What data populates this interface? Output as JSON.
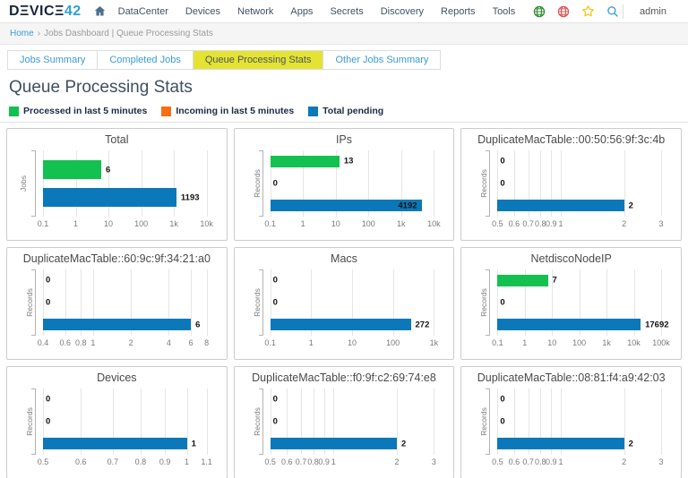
{
  "navbar": {
    "logo": {
      "dark": "DΞVICΞ",
      "accent": "42"
    },
    "items": [
      "DataCenter",
      "Devices",
      "Network",
      "Apps",
      "Secrets",
      "Discovery",
      "Reports",
      "Tools"
    ],
    "user": "admin"
  },
  "breadcrumb": {
    "home": "Home",
    "separator": "›",
    "path": "Jobs Dashboard | Queue Processing Stats"
  },
  "tabs": [
    {
      "label": "Jobs Summary",
      "active": false
    },
    {
      "label": "Completed Jobs",
      "active": false
    },
    {
      "label": "Queue Processing Stats",
      "active": true
    },
    {
      "label": "Other Jobs Summary",
      "active": false
    }
  ],
  "page_title": "Queue Processing Stats",
  "colors": {
    "processed": "#12c150",
    "incoming": "#f96d15",
    "pending": "#0a78b9",
    "tab_highlight": "#e5e332",
    "link": "#3a9bd8"
  },
  "legend": [
    {
      "label": "Processed in last 5 minutes",
      "color": "#12c150"
    },
    {
      "label": "Incoming in last 5 minutes",
      "color": "#f96d15"
    },
    {
      "label": "Total pending",
      "color": "#0a78b9"
    }
  ],
  "chart_data": [
    {
      "type": "bar",
      "title": "Total",
      "ylabel": "Jobs",
      "xscale": "log",
      "xmin": 0.1,
      "xmax": 10000,
      "ticks": [
        {
          "v": 0.1,
          "l": "0.1"
        },
        {
          "v": 1,
          "l": "1"
        },
        {
          "v": 10,
          "l": "10"
        },
        {
          "v": 100,
          "l": "100"
        },
        {
          "v": 1000,
          "l": "1k"
        },
        {
          "v": 10000,
          "l": "10k"
        }
      ],
      "bars": [
        {
          "name": "processed",
          "color": "#12c150",
          "value": 6
        },
        {
          "name": "pending",
          "color": "#0a78b9",
          "value": 1193
        }
      ]
    },
    {
      "type": "bar",
      "title": "IPs",
      "ylabel": "Records",
      "xscale": "log",
      "xmin": 0.1,
      "xmax": 10000,
      "ticks": [
        {
          "v": 0.1,
          "l": "0.1"
        },
        {
          "v": 1,
          "l": "1"
        },
        {
          "v": 10,
          "l": "10"
        },
        {
          "v": 100,
          "l": "100"
        },
        {
          "v": 1000,
          "l": "1k"
        },
        {
          "v": 10000,
          "l": "10k"
        }
      ],
      "bars": [
        {
          "name": "processed",
          "color": "#12c150",
          "value": 13
        },
        {
          "name": "incoming",
          "color": "#f96d15",
          "value": 0
        },
        {
          "name": "pending",
          "color": "#0a78b9",
          "value": 4192
        }
      ]
    },
    {
      "type": "bar",
      "title": "DuplicateMacTable::00:50:56:9f:3c:4b",
      "ylabel": "Records",
      "xscale": "log",
      "xmin": 0.5,
      "xmax": 3,
      "ticks": [
        {
          "v": 0.5,
          "l": "0.5"
        },
        {
          "v": 0.6,
          "l": "0.6"
        },
        {
          "v": 0.7,
          "l": "0.7"
        },
        {
          "v": 0.8,
          "l": "0.8"
        },
        {
          "v": 0.9,
          "l": "0.9"
        },
        {
          "v": 1,
          "l": "1"
        },
        {
          "v": 2,
          "l": "2"
        },
        {
          "v": 3,
          "l": "3"
        }
      ],
      "bars": [
        {
          "name": "processed",
          "color": "#12c150",
          "value": 0
        },
        {
          "name": "incoming",
          "color": "#f96d15",
          "value": 0
        },
        {
          "name": "pending",
          "color": "#0a78b9",
          "value": 2
        }
      ]
    },
    {
      "type": "bar",
      "title": "DuplicateMacTable::60:9c:9f:34:21:a0",
      "ylabel": "Records",
      "xscale": "log",
      "xmin": 0.4,
      "xmax": 8,
      "ticks": [
        {
          "v": 0.4,
          "l": "0.4"
        },
        {
          "v": 0.6,
          "l": "0.6"
        },
        {
          "v": 0.8,
          "l": "0.8"
        },
        {
          "v": 1,
          "l": "1"
        },
        {
          "v": 2,
          "l": "2"
        },
        {
          "v": 4,
          "l": "4"
        },
        {
          "v": 6,
          "l": "6"
        },
        {
          "v": 8,
          "l": "8"
        }
      ],
      "bars": [
        {
          "name": "processed",
          "color": "#12c150",
          "value": 0
        },
        {
          "name": "incoming",
          "color": "#f96d15",
          "value": 0
        },
        {
          "name": "pending",
          "color": "#0a78b9",
          "value": 6
        }
      ]
    },
    {
      "type": "bar",
      "title": "Macs",
      "ylabel": "Records",
      "xscale": "log",
      "xmin": 0.1,
      "xmax": 1000,
      "ticks": [
        {
          "v": 0.1,
          "l": "0.1"
        },
        {
          "v": 1,
          "l": "1"
        },
        {
          "v": 10,
          "l": "10"
        },
        {
          "v": 100,
          "l": "100"
        },
        {
          "v": 1000,
          "l": "1k"
        }
      ],
      "bars": [
        {
          "name": "processed",
          "color": "#12c150",
          "value": 0
        },
        {
          "name": "incoming",
          "color": "#f96d15",
          "value": 0
        },
        {
          "name": "pending",
          "color": "#0a78b9",
          "value": 272
        }
      ]
    },
    {
      "type": "bar",
      "title": "NetdiscoNodeIP",
      "ylabel": "Records",
      "xscale": "log",
      "xmin": 0.1,
      "xmax": 100000,
      "ticks": [
        {
          "v": 0.1,
          "l": "0.1"
        },
        {
          "v": 1,
          "l": "1"
        },
        {
          "v": 10,
          "l": "10"
        },
        {
          "v": 100,
          "l": "100"
        },
        {
          "v": 1000,
          "l": "1k"
        },
        {
          "v": 10000,
          "l": "10k"
        },
        {
          "v": 100000,
          "l": "100k"
        }
      ],
      "bars": [
        {
          "name": "processed",
          "color": "#12c150",
          "value": 7
        },
        {
          "name": "incoming",
          "color": "#f96d15",
          "value": 0
        },
        {
          "name": "pending",
          "color": "#0a78b9",
          "value": 17692
        }
      ]
    },
    {
      "type": "bar",
      "title": "Devices",
      "ylabel": "Records",
      "xscale": "log",
      "xmin": 0.5,
      "xmax": 1.1,
      "ticks": [
        {
          "v": 0.5,
          "l": "0.5"
        },
        {
          "v": 0.6,
          "l": "0.6"
        },
        {
          "v": 0.7,
          "l": "0.7"
        },
        {
          "v": 0.8,
          "l": "0.8"
        },
        {
          "v": 0.9,
          "l": "0.9"
        },
        {
          "v": 1,
          "l": "1"
        },
        {
          "v": 1.1,
          "l": "1.1"
        }
      ],
      "bars": [
        {
          "name": "processed",
          "color": "#12c150",
          "value": 0
        },
        {
          "name": "incoming",
          "color": "#f96d15",
          "value": 0
        },
        {
          "name": "pending",
          "color": "#0a78b9",
          "value": 1
        }
      ]
    },
    {
      "type": "bar",
      "title": "DuplicateMacTable::f0:9f:c2:69:74:e8",
      "ylabel": "Records",
      "xscale": "log",
      "xmin": 0.5,
      "xmax": 3,
      "ticks": [
        {
          "v": 0.5,
          "l": "0.5"
        },
        {
          "v": 0.6,
          "l": "0.6"
        },
        {
          "v": 0.7,
          "l": "0.7"
        },
        {
          "v": 0.8,
          "l": "0.8"
        },
        {
          "v": 0.9,
          "l": "0.9"
        },
        {
          "v": 1,
          "l": "1"
        },
        {
          "v": 2,
          "l": "2"
        },
        {
          "v": 3,
          "l": "3"
        }
      ],
      "bars": [
        {
          "name": "processed",
          "color": "#12c150",
          "value": 0
        },
        {
          "name": "incoming",
          "color": "#f96d15",
          "value": 0
        },
        {
          "name": "pending",
          "color": "#0a78b9",
          "value": 2
        }
      ]
    },
    {
      "type": "bar",
      "title": "DuplicateMacTable::08:81:f4:a9:42:03",
      "ylabel": "Records",
      "xscale": "log",
      "xmin": 0.5,
      "xmax": 3,
      "ticks": [
        {
          "v": 0.5,
          "l": "0.5"
        },
        {
          "v": 0.6,
          "l": "0.6"
        },
        {
          "v": 0.7,
          "l": "0.7"
        },
        {
          "v": 0.8,
          "l": "0.8"
        },
        {
          "v": 0.9,
          "l": "0.9"
        },
        {
          "v": 1,
          "l": "1"
        },
        {
          "v": 2,
          "l": "2"
        },
        {
          "v": 3,
          "l": "3"
        }
      ],
      "bars": [
        {
          "name": "processed",
          "color": "#12c150",
          "value": 0
        },
        {
          "name": "incoming",
          "color": "#f96d15",
          "value": 0
        },
        {
          "name": "pending",
          "color": "#0a78b9",
          "value": 2
        }
      ]
    }
  ]
}
